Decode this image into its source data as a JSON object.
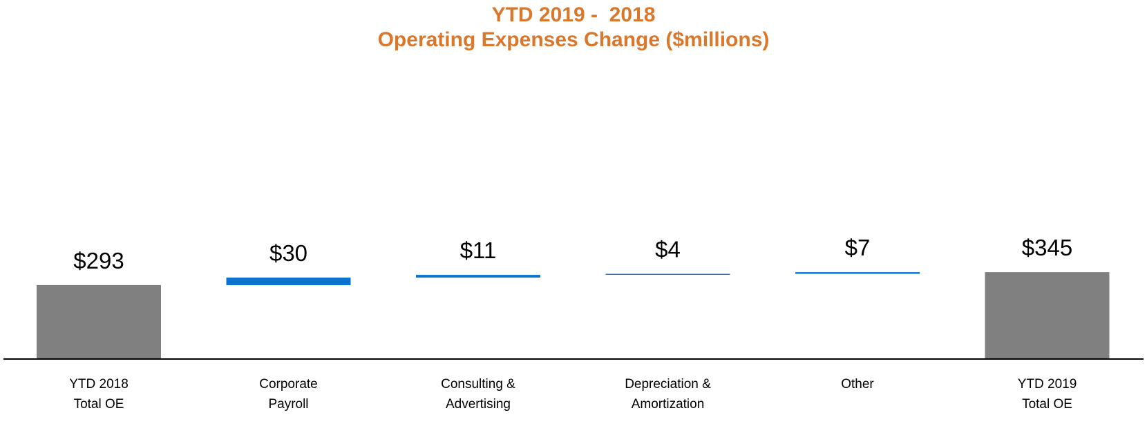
{
  "colors": {
    "title": "#D9782D",
    "total_bar": "#808080",
    "delta_bar": "#0A73D0",
    "axis": "#000000"
  },
  "chart_data": {
    "type": "bar",
    "subtype": "waterfall",
    "title_lines": [
      "YTD 2019 -  2018",
      "Operating Expenses Change ($millions)"
    ],
    "categories": [
      [
        "YTD 2018",
        "Total OE"
      ],
      [
        "Corporate",
        "Payroll"
      ],
      [
        "Consulting &",
        "Advertising"
      ],
      [
        "Depreciation &",
        "Amortization"
      ],
      [
        "Other"
      ],
      [
        "YTD 2019",
        "Total OE"
      ]
    ],
    "kinds": [
      "total",
      "delta",
      "delta",
      "delta",
      "delta",
      "total"
    ],
    "values": [
      293,
      30,
      11,
      4,
      7,
      345
    ],
    "data_labels": [
      "$293",
      "$30",
      "$11",
      "$4",
      "$7",
      "$345"
    ],
    "ylim": [
      0,
      600
    ],
    "xlabel": "",
    "ylabel": "",
    "grid": false,
    "legend": "none"
  }
}
